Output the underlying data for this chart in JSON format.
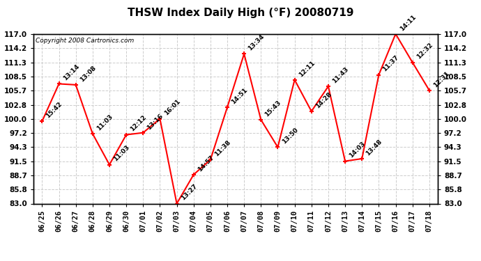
{
  "title": "THSW Index Daily High (°F) 20080719",
  "copyright": "Copyright 2008 Cartronics.com",
  "dates": [
    "06/25",
    "06/26",
    "06/27",
    "06/28",
    "06/29",
    "06/30",
    "07/01",
    "07/02",
    "07/03",
    "07/04",
    "07/05",
    "07/06",
    "07/07",
    "07/08",
    "07/09",
    "07/10",
    "07/11",
    "07/12",
    "07/13",
    "07/14",
    "07/15",
    "07/16",
    "07/17",
    "07/18"
  ],
  "values": [
    99.5,
    107.0,
    106.8,
    97.0,
    90.8,
    96.8,
    97.2,
    100.0,
    83.0,
    88.8,
    91.8,
    102.3,
    113.0,
    99.8,
    94.3,
    107.8,
    101.5,
    106.5,
    91.5,
    92.0,
    108.8,
    117.0,
    111.3,
    105.7
  ],
  "labels": [
    "15:42",
    "13:14",
    "13:08",
    "11:03",
    "11:03",
    "12:12",
    "13:16",
    "16:01",
    "13:27",
    "14:57",
    "11:38",
    "14:51",
    "13:34",
    "15:43",
    "13:50",
    "12:11",
    "14:28",
    "11:43",
    "14:03",
    "13:48",
    "11:37",
    "14:11",
    "12:32",
    "12:31"
  ],
  "ylim": [
    83.0,
    117.0
  ],
  "yticks": [
    83.0,
    85.8,
    88.7,
    91.5,
    94.3,
    97.2,
    100.0,
    102.8,
    105.7,
    108.5,
    111.3,
    114.2,
    117.0
  ],
  "line_color": "#ff0000",
  "bg_color": "#ffffff",
  "grid_color": "#cccccc",
  "title_fontsize": 11,
  "label_fontsize": 6.5,
  "tick_fontsize": 7.5,
  "copyright_fontsize": 6.5
}
